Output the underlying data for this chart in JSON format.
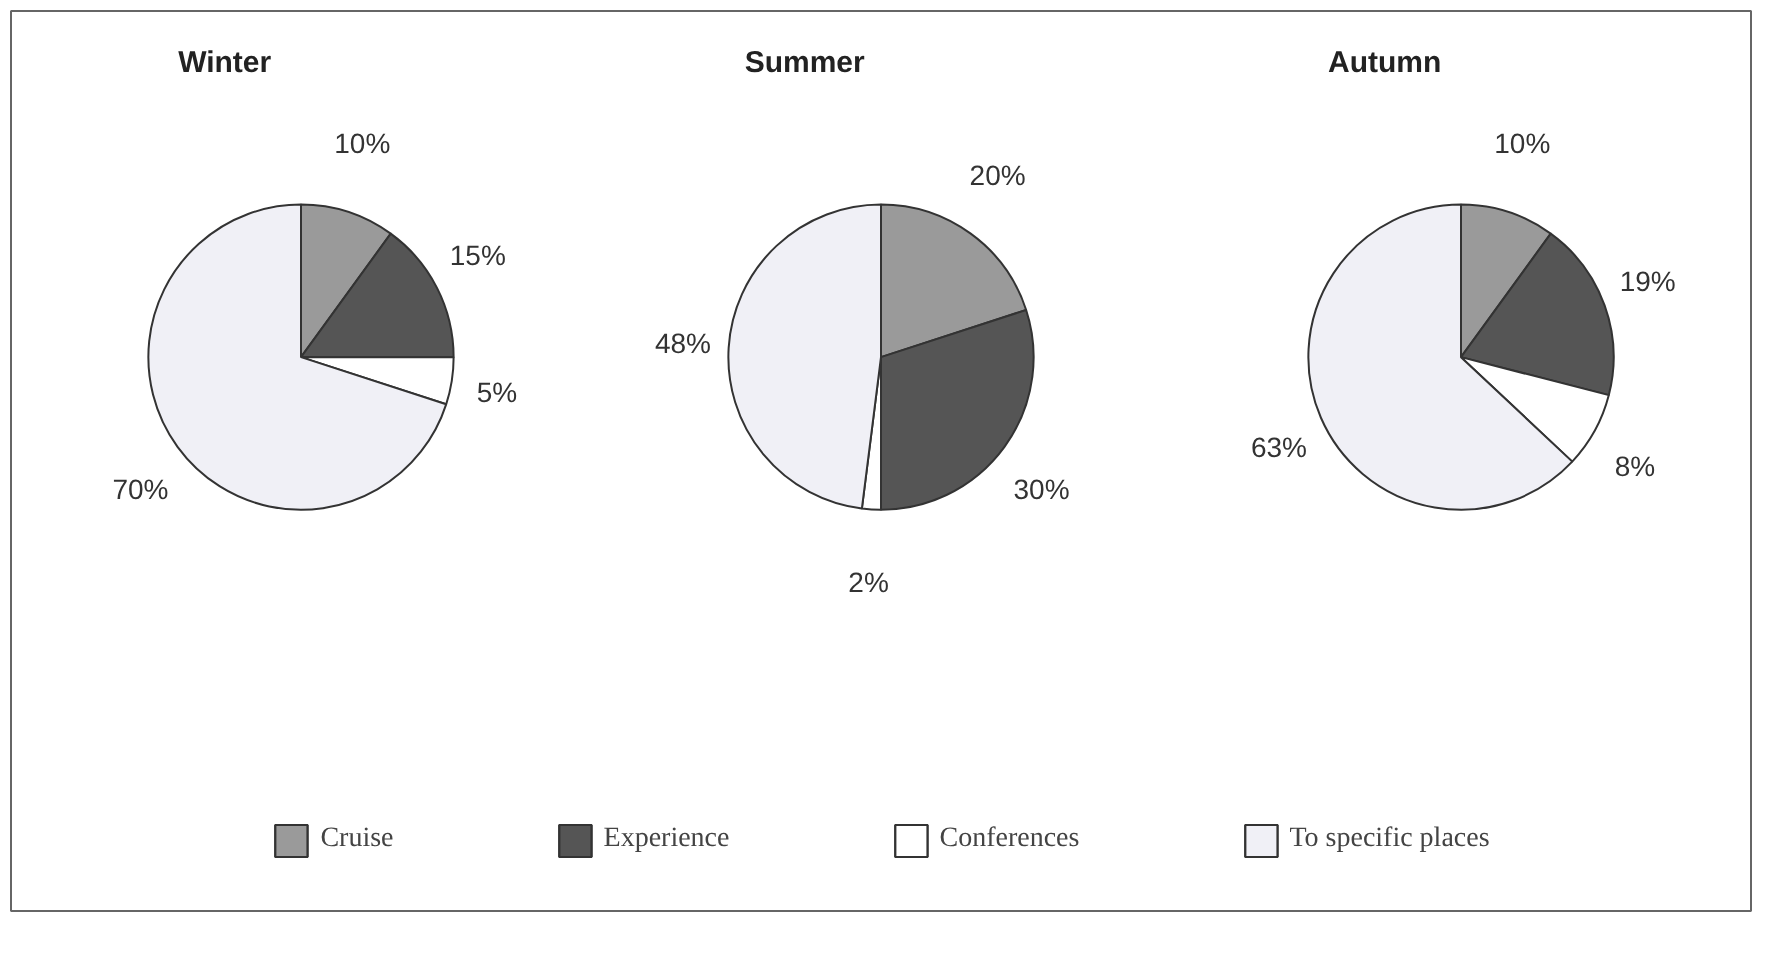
{
  "chart_data": [
    {
      "type": "pie",
      "title": "Winter",
      "categories": [
        "Cruise",
        "Experience",
        "Conferences",
        "To specific places"
      ],
      "values": [
        10,
        15,
        5,
        70
      ],
      "value_labels": [
        "10%",
        "15%",
        "5%",
        "70%"
      ],
      "colors": [
        "#9a9a9a",
        "#555555",
        "#ffffff",
        "#f0f0f6"
      ],
      "data_labels": true,
      "legend": "bottom"
    },
    {
      "type": "pie",
      "title": "Summer",
      "categories": [
        null,
        null,
        null,
        null
      ],
      "values": [
        20,
        30,
        2,
        48
      ],
      "value_labels": [
        "20%",
        "30%",
        "2%",
        "48%"
      ],
      "colors": [
        "#9a9a9a",
        "#555555",
        "#ffffff",
        "#f0f0f6"
      ],
      "data_labels": true
    },
    {
      "type": "pie",
      "title": "Autumn",
      "categories": [
        null,
        null,
        null,
        null
      ],
      "values": [
        10,
        19,
        8,
        63
      ],
      "value_labels": [
        "10%",
        "19%",
        "8%",
        "63%"
      ],
      "colors": [
        "#9a9a9a",
        "#555555",
        "#ffffff",
        "#f0f0f6"
      ],
      "data_labels": true
    }
  ]
}
